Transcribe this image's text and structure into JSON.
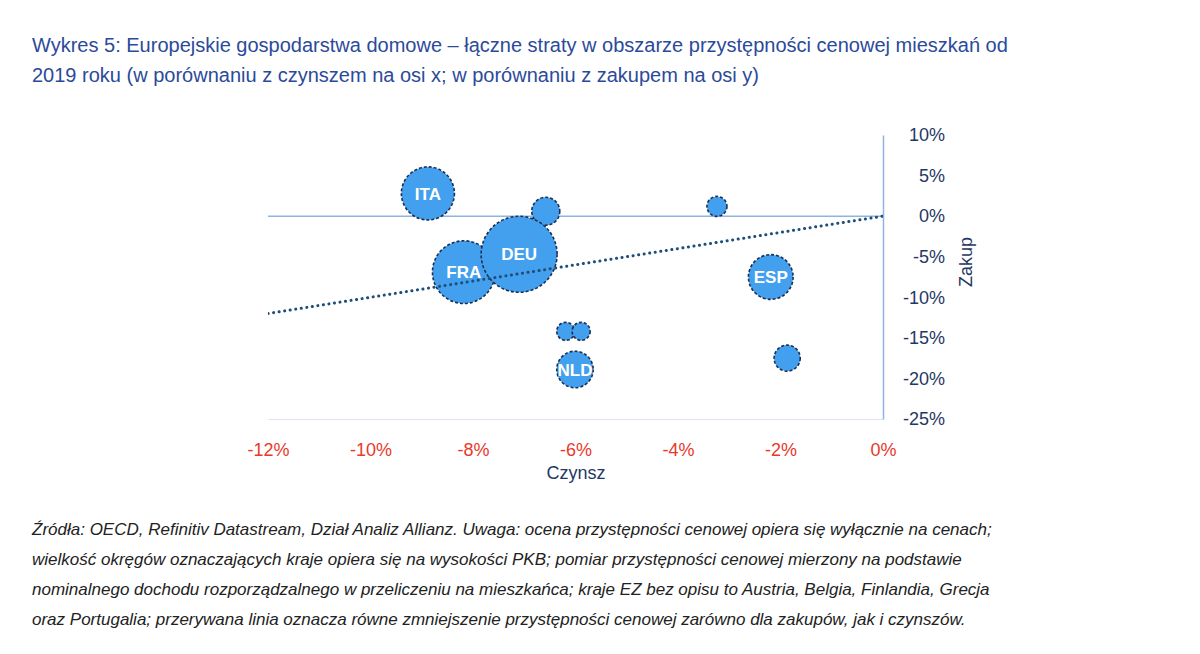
{
  "chart_data": {
    "type": "scatter",
    "title": [
      "Wykres 5: Europejskie gospodarstwa domowe – łączne straty w obszarze przystępności cenowej mieszkań od",
      "2019 roku (w porównaniu z czynszem na osi x; w porównaniu z zakupem na osi y)"
    ],
    "x_label": "Czynsz",
    "y_label": "Zakup",
    "xlim": [
      -12,
      0
    ],
    "xticks": [
      {
        "value": -12,
        "label": "-12%"
      },
      {
        "value": -10,
        "label": "-10%"
      },
      {
        "value": -8,
        "label": "-8%"
      },
      {
        "value": -6,
        "label": "-6%"
      },
      {
        "value": -4,
        "label": "-4%"
      },
      {
        "value": -2,
        "label": "-2%"
      },
      {
        "value": 0,
        "label": "0%"
      }
    ],
    "ylim": [
      -25,
      10
    ],
    "yticks": [
      {
        "value": 10,
        "label": "10%"
      },
      {
        "value": 5,
        "label": "5%"
      },
      {
        "value": 0,
        "label": "0%"
      },
      {
        "value": -5,
        "label": "-5%"
      },
      {
        "value": -10,
        "label": "-10%"
      },
      {
        "value": -15,
        "label": "-15%"
      },
      {
        "value": -20,
        "label": "-20%"
      },
      {
        "value": -25,
        "label": "-25%"
      }
    ],
    "series": [
      {
        "type": "line",
        "line_style": "solid",
        "color": "#8eb4e3",
        "x": [
          -12,
          0
        ],
        "values": [
          0,
          0
        ]
      },
      {
        "type": "scatter",
        "color": "#42a0ee",
        "x": [
          -8.88,
          -6.58,
          -3.24,
          -8.18,
          -7.1,
          -2.19,
          -6.19,
          -5.89,
          -6.01,
          -1.87
        ],
        "values": [
          2.8,
          0.6,
          1.2,
          -6.9,
          -4.7,
          -7.5,
          -14.2,
          -14.2,
          -18.9,
          -17.5
        ],
        "sizes": [
          1900,
          530,
          270,
          2650,
          3900,
          1350,
          220,
          220,
          900,
          460
        ],
        "labels": [
          "ITA",
          null,
          null,
          "FRA",
          "DEU",
          "ESP",
          null,
          null,
          "NLD",
          null
        ]
      },
      {
        "type": "line",
        "line_style": "dotted",
        "color": "#1f4e79",
        "x": [
          -12,
          0
        ],
        "values": [
          -12,
          0
        ]
      }
    ],
    "note": [
      "Źródła: OECD, Refinitiv Datastream, Dział Analiz Allianz. Uwaga: ocena przystępności cenowej opiera się wyłącznie na cenach;",
      "wielkość okręgów oznaczających kraje opiera się na wysokości PKB; pomiar przystępności cenowej mierzony na podstawie",
      "nominalnego dochodu rozporządzalnego w przeliczeniu na mieszkańca; kraje EZ bez opisu to Austria, Belgia, Finlandia, Grecja",
      "oraz Portugalia; przerywana linia oznacza równe zmniejszenie przystępności cenowej zarówno dla zakupów, jak i czynszów."
    ]
  }
}
